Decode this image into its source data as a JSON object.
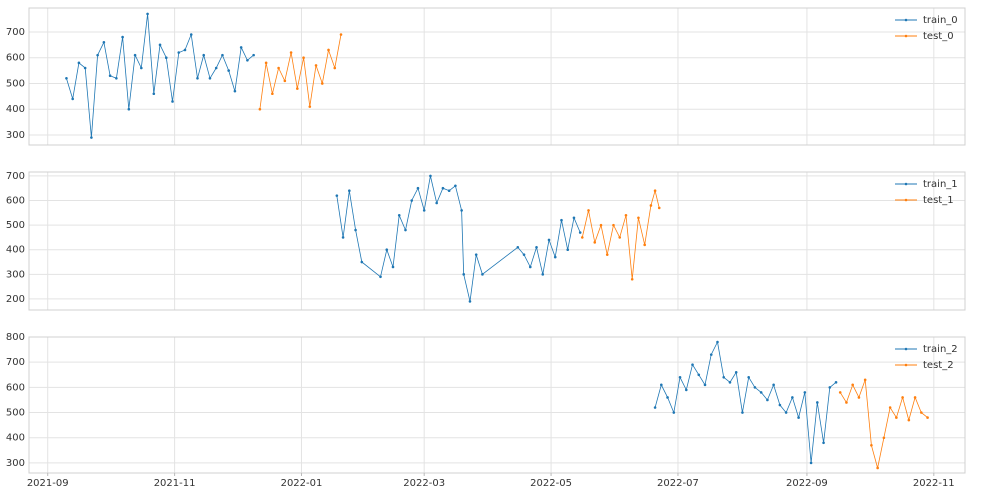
{
  "chart_data": [
    {
      "type": "line",
      "legend": "upper right",
      "grid": true,
      "ylim": [
        261,
        793
      ],
      "yticks": [
        300,
        400,
        500,
        600,
        700
      ],
      "series": [
        {
          "name": "train_0",
          "color": "#1f77b4",
          "x": [
            "2021-09-10",
            "2021-09-13",
            "2021-09-16",
            "2021-09-19",
            "2021-09-22",
            "2021-09-25",
            "2021-09-28",
            "2021-10-01",
            "2021-10-04",
            "2021-10-07",
            "2021-10-10",
            "2021-10-13",
            "2021-10-16",
            "2021-10-19",
            "2021-10-22",
            "2021-10-25",
            "2021-10-28",
            "2021-10-31",
            "2021-11-03",
            "2021-11-06",
            "2021-11-09",
            "2021-11-12",
            "2021-11-15",
            "2021-11-18",
            "2021-11-21",
            "2021-11-24",
            "2021-11-27",
            "2021-11-30",
            "2021-12-03",
            "2021-12-06",
            "2021-12-09"
          ],
          "values": [
            520,
            440,
            580,
            560,
            290,
            610,
            660,
            530,
            520,
            680,
            400,
            610,
            560,
            770,
            460,
            650,
            600,
            430,
            620,
            630,
            690,
            520,
            610,
            520,
            560,
            610,
            550,
            470,
            640,
            590,
            610
          ]
        },
        {
          "name": "test_0",
          "color": "#ff7f0e",
          "x": [
            "2021-12-12",
            "2021-12-15",
            "2021-12-18",
            "2021-12-21",
            "2021-12-24",
            "2021-12-27",
            "2021-12-30",
            "2022-01-02",
            "2022-01-05",
            "2022-01-08",
            "2022-01-11",
            "2022-01-14",
            "2022-01-17",
            "2022-01-20"
          ],
          "values": [
            400,
            580,
            460,
            560,
            510,
            620,
            480,
            600,
            410,
            570,
            500,
            630,
            560,
            690
          ]
        }
      ]
    },
    {
      "type": "line",
      "legend": "upper right",
      "grid": true,
      "ylim": [
        155,
        716
      ],
      "yticks": [
        200,
        300,
        400,
        500,
        600,
        700
      ],
      "series": [
        {
          "name": "train_1",
          "color": "#1f77b4",
          "x": [
            "2022-01-18",
            "2022-01-21",
            "2022-01-24",
            "2022-01-27",
            "2022-01-30",
            "2022-02-08",
            "2022-02-11",
            "2022-02-14",
            "2022-02-17",
            "2022-02-20",
            "2022-02-23",
            "2022-02-26",
            "2022-03-01",
            "2022-03-04",
            "2022-03-07",
            "2022-03-10",
            "2022-03-13",
            "2022-03-16",
            "2022-03-19",
            "2022-03-20",
            "2022-03-23",
            "2022-03-26",
            "2022-03-29",
            "2022-04-15",
            "2022-04-18",
            "2022-04-21",
            "2022-04-24",
            "2022-04-27",
            "2022-04-30",
            "2022-05-03",
            "2022-05-06",
            "2022-05-09",
            "2022-05-12",
            "2022-05-15"
          ],
          "values": [
            620,
            450,
            640,
            480,
            350,
            290,
            400,
            330,
            540,
            480,
            600,
            650,
            560,
            700,
            590,
            650,
            640,
            660,
            560,
            300,
            190,
            380,
            300,
            410,
            380,
            330,
            410,
            300,
            440,
            370,
            520,
            400,
            530,
            470
          ]
        },
        {
          "name": "test_1",
          "color": "#ff7f0e",
          "x": [
            "2022-05-16",
            "2022-05-19",
            "2022-05-22",
            "2022-05-25",
            "2022-05-28",
            "2022-05-31",
            "2022-06-03",
            "2022-06-06",
            "2022-06-09",
            "2022-06-12",
            "2022-06-15",
            "2022-06-18",
            "2022-06-20",
            "2022-06-22"
          ],
          "values": [
            450,
            560,
            430,
            500,
            380,
            500,
            450,
            540,
            280,
            530,
            420,
            580,
            640,
            570
          ]
        }
      ]
    },
    {
      "type": "line",
      "legend": "upper right",
      "grid": true,
      "ylim": [
        260,
        800
      ],
      "yticks": [
        300,
        400,
        500,
        600,
        700,
        800
      ],
      "xlim": [
        "2021-08-23",
        "2022-11-16"
      ],
      "xticks": [
        {
          "value": "2021-09-01",
          "label": "2021-09"
        },
        {
          "value": "2021-11-01",
          "label": "2021-11"
        },
        {
          "value": "2022-01-01",
          "label": "2022-01"
        },
        {
          "value": "2022-03-01",
          "label": "2022-03"
        },
        {
          "value": "2022-05-01",
          "label": "2022-05"
        },
        {
          "value": "2022-07-01",
          "label": "2022-07"
        },
        {
          "value": "2022-09-01",
          "label": "2022-09"
        },
        {
          "value": "2022-11-01",
          "label": "2022-11"
        }
      ],
      "series": [
        {
          "name": "train_2",
          "color": "#1f77b4",
          "x": [
            "2022-06-20",
            "2022-06-23",
            "2022-06-26",
            "2022-06-29",
            "2022-07-02",
            "2022-07-05",
            "2022-07-08",
            "2022-07-11",
            "2022-07-14",
            "2022-07-17",
            "2022-07-20",
            "2022-07-23",
            "2022-07-26",
            "2022-07-29",
            "2022-08-01",
            "2022-08-04",
            "2022-08-07",
            "2022-08-10",
            "2022-08-13",
            "2022-08-16",
            "2022-08-19",
            "2022-08-22",
            "2022-08-25",
            "2022-08-28",
            "2022-08-31",
            "2022-09-03",
            "2022-09-06",
            "2022-09-09",
            "2022-09-12",
            "2022-09-15"
          ],
          "values": [
            520,
            610,
            560,
            500,
            640,
            590,
            690,
            650,
            610,
            730,
            780,
            640,
            620,
            660,
            500,
            640,
            600,
            580,
            550,
            610,
            530,
            500,
            560,
            480,
            580,
            300,
            540,
            380,
            600,
            620
          ]
        },
        {
          "name": "test_2",
          "color": "#ff7f0e",
          "x": [
            "2022-09-17",
            "2022-09-20",
            "2022-09-23",
            "2022-09-26",
            "2022-09-29",
            "2022-10-02",
            "2022-10-05",
            "2022-10-08",
            "2022-10-11",
            "2022-10-14",
            "2022-10-17",
            "2022-10-20",
            "2022-10-23",
            "2022-10-26",
            "2022-10-29"
          ],
          "values": [
            580,
            540,
            610,
            560,
            630,
            370,
            280,
            400,
            520,
            480,
            560,
            470,
            560,
            500,
            480
          ]
        }
      ]
    }
  ]
}
